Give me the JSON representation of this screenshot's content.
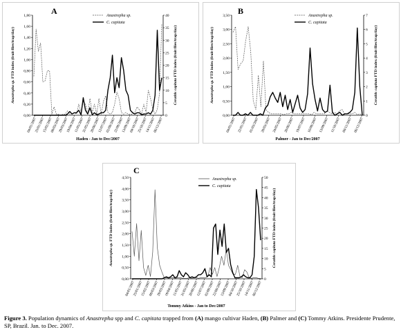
{
  "caption": {
    "label": "Figure 3.",
    "t1": " Population dynamics of ",
    "species1": "Anastrepha",
    "t2": " spp and ",
    "species2": "C. capitata",
    "t3": " trapped from ",
    "a": "(A)",
    "t4": " mango cultivar Haden, ",
    "b": "(B)",
    "t5": " Palmer and ",
    "c": "(C)",
    "t6": " Tommy Atkins. Presidente Prudente, SP, Brazil. Jan. to Dec. 2007."
  },
  "colors": {
    "anastrepha": "#555555",
    "capitata": "#000000",
    "axis": "#000000"
  },
  "chart_data": [
    {
      "type": "line",
      "panel_letter": "A",
      "xlabel": "Haden - Jan to Dec/2007",
      "ylabel": "Anastrepha sp. FTD index (fruit flies/trap/day)",
      "ylabel2": "Ceratitis capitata FTD index (fruit flies/trap/day)",
      "ylim": [
        0,
        1.8
      ],
      "yticks": [
        "0,00",
        "0,20",
        "0,40",
        "0,60",
        "0,80",
        "1,00",
        "1,20",
        "1,40",
        "1,60",
        "1,80"
      ],
      "ylim2": [
        0,
        40
      ],
      "yticks2": [
        "0",
        "5",
        "10",
        "15",
        "20",
        "25",
        "30",
        "35",
        "40"
      ],
      "x_tick_labels": [
        "04/01/2007",
        "25/01/2007",
        "15/02/2007",
        "08/03/2007",
        "29/03/2007",
        "19/04/2007",
        "11/05/2007",
        "31/05/2007",
        "20/06/2007",
        "12/07/2007",
        "02/08/2007",
        "22/08/2007",
        "13/09/2007",
        "04/10/2007",
        "25/10/2007",
        "14/11/2007",
        "06/12/2007"
      ],
      "legend": "top-right",
      "series": [
        {
          "name": "Anastrepha sp.",
          "axis": "left",
          "style": "dashed",
          "values": [
            0.7,
            1.55,
            1.15,
            1.3,
            0.6,
            0.62,
            0.8,
            0.8,
            0.02,
            0.15,
            0.02,
            0.02,
            0,
            0.02,
            0.02,
            0.08,
            0.02,
            0.02,
            0.05,
            0.02,
            0.2,
            0.05,
            0.25,
            0.2,
            0.02,
            0.3,
            0.05,
            0.2,
            0.02,
            0.3,
            0.02,
            0.25,
            0.35,
            0.05,
            0.02,
            0.05,
            0.2,
            0.42,
            0.3,
            0.05,
            0.02,
            0.05,
            0.02,
            0.02,
            0.02,
            0.05,
            0.15,
            0.1,
            0.02,
            0.2,
            0.05,
            0.45,
            0.3,
            0.1,
            0.02,
            0.1,
            0.4,
            1.65
          ]
        },
        {
          "name": "C. capitata",
          "axis": "right",
          "style": "solid",
          "values": [
            0,
            0,
            0,
            0,
            0,
            0,
            0,
            0,
            0,
            0,
            0,
            0,
            0,
            0,
            0,
            0.5,
            1.5,
            0.5,
            1,
            1,
            2,
            0.2,
            7,
            2,
            0.5,
            3,
            0.2,
            1,
            0.2,
            0.5,
            1,
            1,
            2,
            10,
            15,
            24,
            9,
            15,
            11,
            23,
            18,
            10,
            8,
            2,
            1,
            0.5,
            1,
            1,
            0.2,
            0.5,
            0.5,
            1,
            0.5,
            2,
            8,
            34,
            10,
            15
          ]
        }
      ]
    },
    {
      "type": "line",
      "panel_letter": "B",
      "xlabel": "Palmer - Jan to Dec/2007",
      "ylabel": "Anastrepha sp. FTD index (fruit flies/trap/day)",
      "ylabel2": "Ceratitis capitata FTD index (fruit flies/trap/day)",
      "ylim": [
        0,
        3.5
      ],
      "yticks": [
        "0,00",
        "0,50",
        "1,00",
        "1,50",
        "2,00",
        "2,50",
        "3,00",
        "3,50"
      ],
      "ylim2": [
        0,
        7
      ],
      "yticks2": [
        "0",
        "1",
        "2",
        "3",
        "4",
        "5",
        "6",
        "7"
      ],
      "x_tick_labels": [
        "04/01/2007",
        "22/01/2007",
        "01/03/2007",
        "28/03/2007",
        "24/05/2007",
        "20/06/2007",
        "19/07/2007",
        "16/08/2007",
        "13/09/2007",
        "11/10/2007",
        "08/11/2007",
        "06/12/2007"
      ],
      "legend": "top-right",
      "series": [
        {
          "name": "Anastrepha sp.",
          "axis": "left",
          "style": "dashed",
          "values": [
            2.9,
            3.1,
            1.6,
            1.8,
            1.9,
            2.6,
            3.1,
            2.2,
            0.5,
            0.2,
            1.4,
            0.3,
            1.9,
            0.2,
            0.1,
            0.05,
            0.05,
            0.05,
            0.05,
            0.05,
            0.02,
            0.05,
            0.05,
            0.1,
            0.05,
            0.05,
            0.05,
            0.05,
            0.05,
            0.05,
            0.05,
            0.02,
            0.1,
            0.05,
            0.05,
            0.05,
            0.05,
            0.15,
            0.1,
            0.05,
            0.1,
            0.05,
            0.15,
            0.2,
            0.05,
            0.05,
            0.05,
            0.05,
            0.1,
            0.02,
            0.05,
            0.02
          ]
        },
        {
          "name": "C. capitata",
          "axis": "right",
          "style": "solid",
          "values": [
            0,
            0,
            0.2,
            0,
            0,
            0.1,
            0,
            0.2,
            0,
            0,
            0,
            0.1,
            0,
            0.5,
            0.7,
            1.3,
            1.6,
            1.2,
            0.9,
            1.6,
            0.6,
            1.4,
            0.4,
            1.1,
            0.2,
            0.8,
            1.4,
            0.5,
            0.2,
            0.4,
            1.5,
            4.7,
            2.2,
            1.1,
            0.3,
            1.2,
            0.4,
            0.2,
            0.3,
            2.1,
            0.2,
            0,
            0.1,
            0.2,
            0,
            0.1,
            0.1,
            0.2,
            0.4,
            1.6,
            6.1,
            2.0,
            0
          ]
        }
      ]
    },
    {
      "type": "line",
      "panel_letter": "C",
      "xlabel": "Tommy Atkins - Jan to Dec/2007",
      "ylabel": "Anastrepha sp. FTD index (fruit flies/trap/day)",
      "ylabel2": "Ceratitis capitata FTD index (fruit flies/trap/day)",
      "ylim": [
        0,
        4.5
      ],
      "yticks": [
        "0,00",
        "0,50",
        "1,00",
        "1,50",
        "2,00",
        "2,50",
        "3,00",
        "3,50",
        "4,00",
        "4,50"
      ],
      "ylim2": [
        0,
        50
      ],
      "yticks2": [
        "0",
        "5",
        "10",
        "15",
        "20",
        "25",
        "30",
        "35",
        "40",
        "45",
        "50"
      ],
      "x_tick_labels": [
        "04/01/2007",
        "25/01/2007",
        "15/02/2007",
        "08/03/2007",
        "29/03/2007",
        "19/04/2007",
        "11/05/2007",
        "31/05/2007",
        "20/06/2007",
        "12/07/2007",
        "02/08/2007",
        "22/08/2007",
        "13/09/2007",
        "04/10/2007",
        "25/10/2007",
        "14/11/2007",
        "06/12/2007"
      ],
      "legend": "top-right",
      "series": [
        {
          "name": "Anastrepha sp.",
          "axis": "left",
          "style": "solid-thin",
          "values": [
            2.1,
            1.0,
            2.45,
            0.8,
            2.15,
            0.5,
            0.15,
            0.6,
            0.1,
            1.2,
            3.95,
            1.4,
            0.6,
            0.3,
            0.05,
            0.05,
            0.02,
            0.05,
            0.05,
            0.02,
            0.05,
            0.05,
            0.02,
            0.02,
            0.02,
            0.05,
            0.02,
            0.05,
            0.05,
            0.02,
            0.05,
            0.05,
            0.05,
            0.1,
            0.5,
            0.2,
            0.5,
            0.1,
            0.5,
            1.0,
            0.6,
            1.3,
            0.6,
            0.4,
            0.2,
            0.2,
            0.6,
            0.1,
            0.05,
            0.4,
            0.3,
            0.05,
            0.02,
            0.05,
            0.05,
            0.02,
            0.02
          ]
        },
        {
          "name": "C. capitata",
          "axis": "right",
          "style": "solid",
          "values": [
            0,
            0,
            0,
            0,
            0,
            0,
            0,
            0,
            0,
            0,
            0,
            0,
            0,
            0,
            0,
            0.5,
            1,
            0.5,
            1,
            2,
            0.5,
            1,
            4,
            2,
            1,
            3,
            2,
            0.5,
            1,
            0.5,
            1,
            2,
            2,
            3,
            5,
            1,
            2,
            1,
            25,
            27,
            12,
            24,
            16,
            27,
            13,
            15,
            7,
            3,
            0.5,
            0.5,
            0.5,
            1,
            2,
            1,
            0.5,
            0.5,
            2,
            11,
            44,
            35,
            19
          ]
        }
      ]
    }
  ]
}
